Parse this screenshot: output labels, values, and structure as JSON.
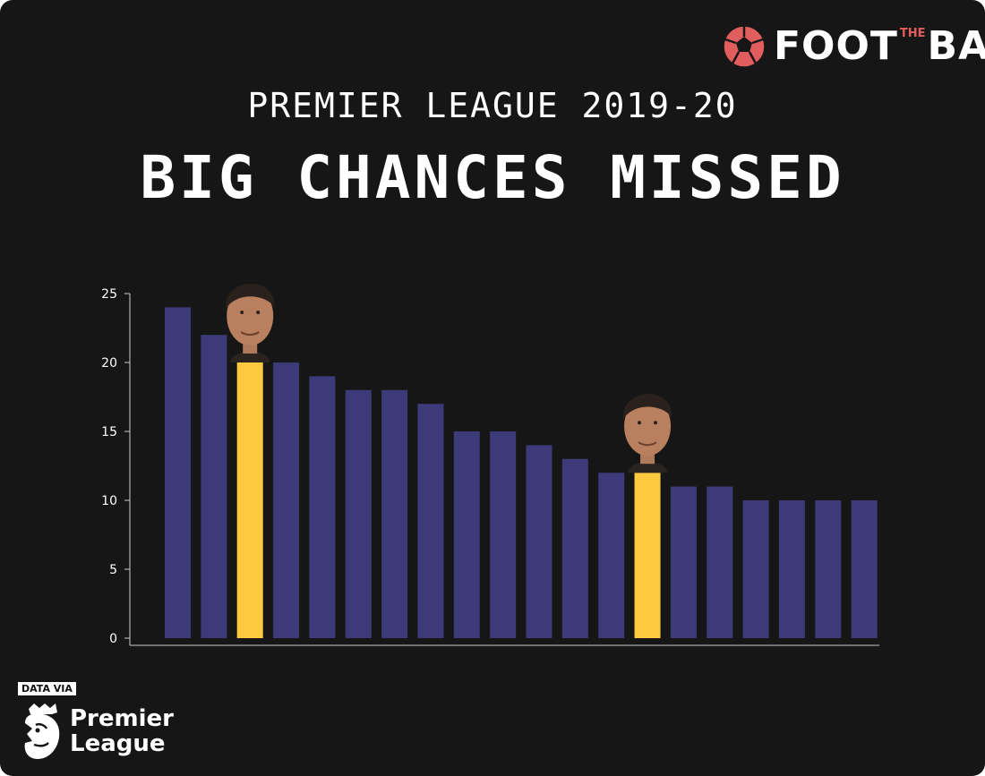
{
  "brand": {
    "name_left": "FOOT",
    "name_middle": "THE",
    "name_right": "BALL"
  },
  "subtitle": "PREMIER LEAGUE 2019-20",
  "title": "BIG CHANCES MISSED",
  "source": {
    "label": "DATA VIA",
    "name_line1": "Premier",
    "name_line2": "League"
  },
  "colors": {
    "background": "#161616",
    "bar": "#3c3a78",
    "highlight": "#fdc93f",
    "axis": "#cccccc",
    "logo_accent": "#e25d5d"
  },
  "chart_data": {
    "type": "bar",
    "title": "BIG CHANCES MISSED",
    "xlabel": "",
    "ylabel": "",
    "ylim": [
      0,
      25
    ],
    "yticks": [
      0,
      5,
      10,
      15,
      20,
      25
    ],
    "grid": false,
    "legend": "none",
    "values": [
      24,
      22,
      20,
      20,
      19,
      18,
      18,
      17,
      15,
      15,
      14,
      13,
      12,
      12,
      11,
      11,
      10,
      10,
      10,
      10
    ],
    "highlighted_indices": [
      2,
      13
    ],
    "annotations": [
      {
        "type": "player-photo",
        "bar_index": 2
      },
      {
        "type": "player-photo",
        "bar_index": 13
      }
    ]
  }
}
